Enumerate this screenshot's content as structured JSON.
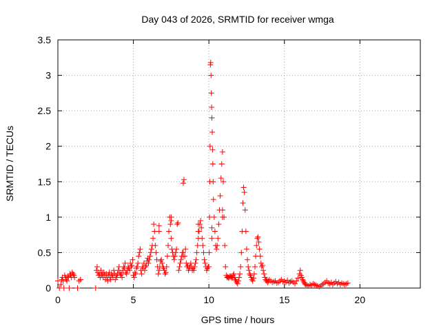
{
  "chart_data": {
    "type": "scatter",
    "title": "Day 043 of 2026, SRMTID for receiver wmga",
    "xlabel": "GPS time / hours",
    "ylabel": "SRMTID / TECUs",
    "xlim": [
      0,
      24
    ],
    "ylim": [
      0,
      3.5
    ],
    "xticks": [
      0,
      5,
      10,
      15,
      20
    ],
    "xtick_labels": [
      "0",
      "5",
      "10",
      "15",
      "20"
    ],
    "yticks": [
      0,
      0.5,
      1,
      1.5,
      2,
      2.5,
      3,
      3.5
    ],
    "ytick_labels": [
      "0",
      "0.5",
      "1",
      "1.5",
      "2",
      "2.5",
      "3",
      "3.5"
    ],
    "grid": true,
    "marker": "+",
    "series": [
      {
        "name": "wmga",
        "color": "#ff0000",
        "x": [
          0.0,
          0.1,
          0.2,
          0.25,
          0.3,
          0.35,
          0.4,
          0.45,
          0.5,
          0.55,
          0.6,
          0.65,
          0.7,
          0.75,
          0.8,
          0.85,
          0.9,
          0.95,
          1.0,
          1.05,
          1.1,
          1.3,
          1.4,
          1.5,
          2.5,
          2.55,
          2.6,
          2.65,
          2.7,
          2.75,
          2.8,
          2.85,
          2.9,
          2.95,
          3.0,
          3.05,
          3.1,
          3.15,
          3.2,
          3.25,
          3.3,
          3.35,
          3.4,
          3.45,
          3.5,
          3.55,
          3.6,
          3.65,
          3.7,
          3.75,
          3.8,
          3.85,
          3.9,
          3.95,
          4.0,
          4.05,
          4.1,
          4.15,
          4.2,
          4.25,
          4.3,
          4.35,
          4.4,
          4.45,
          4.5,
          4.55,
          4.6,
          4.65,
          4.7,
          4.75,
          4.8,
          4.85,
          4.9,
          4.95,
          5.0,
          5.05,
          5.1,
          5.15,
          5.2,
          5.25,
          5.3,
          5.35,
          5.4,
          5.45,
          5.5,
          5.55,
          5.6,
          5.65,
          5.7,
          5.75,
          5.8,
          5.85,
          5.9,
          5.95,
          6.0,
          6.05,
          6.1,
          6.15,
          6.2,
          6.25,
          6.3,
          6.35,
          6.4,
          6.45,
          6.5,
          6.55,
          6.6,
          6.65,
          6.7,
          6.75,
          6.8,
          6.85,
          6.9,
          6.95,
          7.0,
          7.05,
          7.1,
          7.15,
          7.2,
          7.25,
          7.3,
          7.35,
          7.4,
          7.45,
          7.5,
          7.55,
          7.6,
          7.65,
          7.7,
          7.75,
          7.8,
          7.85,
          7.9,
          7.95,
          8.0,
          8.05,
          8.1,
          8.15,
          8.2,
          8.25,
          8.3,
          8.35,
          8.4,
          8.45,
          8.5,
          8.55,
          8.6,
          8.65,
          8.7,
          8.75,
          8.8,
          8.85,
          8.9,
          8.95,
          9.0,
          9.05,
          9.1,
          9.15,
          9.2,
          9.25,
          9.3,
          9.35,
          9.4,
          9.45,
          9.5,
          9.55,
          9.6,
          9.65,
          9.7,
          9.75,
          9.8,
          9.85,
          9.9,
          9.95,
          10.0,
          10.02,
          10.04,
          10.06,
          10.08,
          10.1,
          10.12,
          10.14,
          10.16,
          10.18,
          10.2,
          10.22,
          10.24,
          10.26,
          10.28,
          10.3,
          10.35,
          10.4,
          10.45,
          10.5,
          10.55,
          10.6,
          10.65,
          10.7,
          10.75,
          10.8,
          10.85,
          10.9,
          10.95,
          11.0,
          11.05,
          11.1,
          11.15,
          11.2,
          11.25,
          11.3,
          11.35,
          11.4,
          11.45,
          11.5,
          11.55,
          11.6,
          11.65,
          11.7,
          11.75,
          11.8,
          11.85,
          11.9,
          11.95,
          12.0,
          12.05,
          12.1,
          12.15,
          12.2,
          12.25,
          12.3,
          12.35,
          12.4,
          12.45,
          12.5,
          12.55,
          12.6,
          12.65,
          12.7,
          12.75,
          12.8,
          12.85,
          12.9,
          12.95,
          13.0,
          13.05,
          13.1,
          13.15,
          13.2,
          13.25,
          13.3,
          13.35,
          13.4,
          13.45,
          13.5,
          13.55,
          13.6,
          13.65,
          13.7,
          13.75,
          13.8,
          13.85,
          13.9,
          13.95,
          14.0,
          14.1,
          14.2,
          14.3,
          14.4,
          14.5,
          14.6,
          14.7,
          14.8,
          14.9,
          15.0,
          15.1,
          15.2,
          15.3,
          15.4,
          15.5,
          15.6,
          15.7,
          15.8,
          15.9,
          16.0,
          16.05,
          16.1,
          16.15,
          16.2,
          16.25,
          16.3,
          16.35,
          16.4,
          16.5,
          16.6,
          16.7,
          16.8,
          16.9,
          17.0,
          17.1,
          17.2,
          17.3,
          17.4,
          17.5,
          17.6,
          17.7,
          17.8,
          17.9,
          18.0,
          18.1,
          18.2,
          18.3,
          18.4,
          18.5,
          18.6,
          18.7,
          18.8,
          18.9,
          19.0,
          19.1,
          19.2,
          1.5,
          8.3,
          8.3,
          6.7,
          6.7,
          7.5,
          7.5,
          9.3,
          9.3,
          10.2,
          10.2,
          10.9,
          10.9
        ],
        "y": [
          0.1,
          0.0,
          0.05,
          0.12,
          0.15,
          0.1,
          0.0,
          0.18,
          0.15,
          0.12,
          0.1,
          0.16,
          0.15,
          0.0,
          0.2,
          0.18,
          0.15,
          0.22,
          0.2,
          0.18,
          0.15,
          0.0,
          0.1,
          0.12,
          0.0,
          0.25,
          0.3,
          0.22,
          0.18,
          0.2,
          0.15,
          0.25,
          0.18,
          0.2,
          0.15,
          0.22,
          0.18,
          0.12,
          0.2,
          0.15,
          0.1,
          0.18,
          0.22,
          0.15,
          0.12,
          0.2,
          0.18,
          0.15,
          0.25,
          0.2,
          0.12,
          0.18,
          0.15,
          0.2,
          0.25,
          0.3,
          0.22,
          0.18,
          0.2,
          0.15,
          0.25,
          0.3,
          0.28,
          0.35,
          0.22,
          0.2,
          0.25,
          0.3,
          0.28,
          0.25,
          0.35,
          0.3,
          0.32,
          0.4,
          0.18,
          0.15,
          0.22,
          0.2,
          0.28,
          0.3,
          0.35,
          0.45,
          0.5,
          0.55,
          0.25,
          0.2,
          0.3,
          0.28,
          0.35,
          0.25,
          0.3,
          0.32,
          0.38,
          0.42,
          0.35,
          0.4,
          0.45,
          0.5,
          0.55,
          0.6,
          0.7,
          0.9,
          0.8,
          0.6,
          0.5,
          0.4,
          0.3,
          0.2,
          0.25,
          0.3,
          0.38,
          0.4,
          0.35,
          0.3,
          0.28,
          0.25,
          0.2,
          0.22,
          0.3,
          0.45,
          0.6,
          0.8,
          1.0,
          0.9,
          0.7,
          0.55,
          0.5,
          0.45,
          0.4,
          0.45,
          0.5,
          0.55,
          0.9,
          0.92,
          0.25,
          0.3,
          0.35,
          0.4,
          0.45,
          0.5,
          1.48,
          1.53,
          0.45,
          0.55,
          0.35,
          0.3,
          0.32,
          0.25,
          0.28,
          0.3,
          0.35,
          0.3,
          0.25,
          0.28,
          0.25,
          0.3,
          0.35,
          0.4,
          0.5,
          0.6,
          0.7,
          0.8,
          0.9,
          0.95,
          0.85,
          0.7,
          0.6,
          0.5,
          0.4,
          0.35,
          0.3,
          0.25,
          0.28,
          0.3,
          0.3,
          0.5,
          1.0,
          1.5,
          2.0,
          3.15,
          3.18,
          3.0,
          2.75,
          2.55,
          2.4,
          2.2,
          1.95,
          1.75,
          1.5,
          1.25,
          1.0,
          0.8,
          0.6,
          0.55,
          0.6,
          0.7,
          0.9,
          1.1,
          1.3,
          1.55,
          1.75,
          1.92,
          1.5,
          1.0,
          0.6,
          0.3,
          0.18,
          0.15,
          0.16,
          0.14,
          0.15,
          0.17,
          0.16,
          0.15,
          0.14,
          0.18,
          0.2,
          0.15,
          0.12,
          0.1,
          0.08,
          0.06,
          0.1,
          0.15,
          0.2,
          0.3,
          0.5,
          0.8,
          1.2,
          1.42,
          1.35,
          1.1,
          0.8,
          0.55,
          0.4,
          0.3,
          0.25,
          0.2,
          0.18,
          0.15,
          0.12,
          0.1,
          0.14,
          0.2,
          0.3,
          0.45,
          0.6,
          0.7,
          0.72,
          0.65,
          0.55,
          0.45,
          0.35,
          0.3,
          0.32,
          0.25,
          0.2,
          0.15,
          0.12,
          0.1,
          0.12,
          0.08,
          0.1,
          0.12,
          0.1,
          0.08,
          0.09,
          0.1,
          0.07,
          0.08,
          0.1,
          0.12,
          0.09,
          0.1,
          0.08,
          0.11,
          0.07,
          0.09,
          0.1,
          0.08,
          0.06,
          0.1,
          0.14,
          0.2,
          0.25,
          0.18,
          0.15,
          0.12,
          0.1,
          0.08,
          0.06,
          0.05,
          0.04,
          0.03,
          0.05,
          0.04,
          0.06,
          0.05,
          0.04,
          0.03,
          0.02,
          0.03,
          0.05,
          0.06,
          0.08,
          0.1,
          0.07,
          0.06,
          0.08,
          0.05,
          0.07,
          0.09,
          0.06,
          0.08,
          0.05,
          0.07,
          0.06,
          0.05,
          0.06,
          0.07,
          0.12,
          0.45,
          0.5,
          0.8,
          0.88,
          0.95,
          1.0,
          0.8,
          0.9,
          0.7,
          0.85,
          1.0,
          1.1
        ]
      }
    ]
  }
}
